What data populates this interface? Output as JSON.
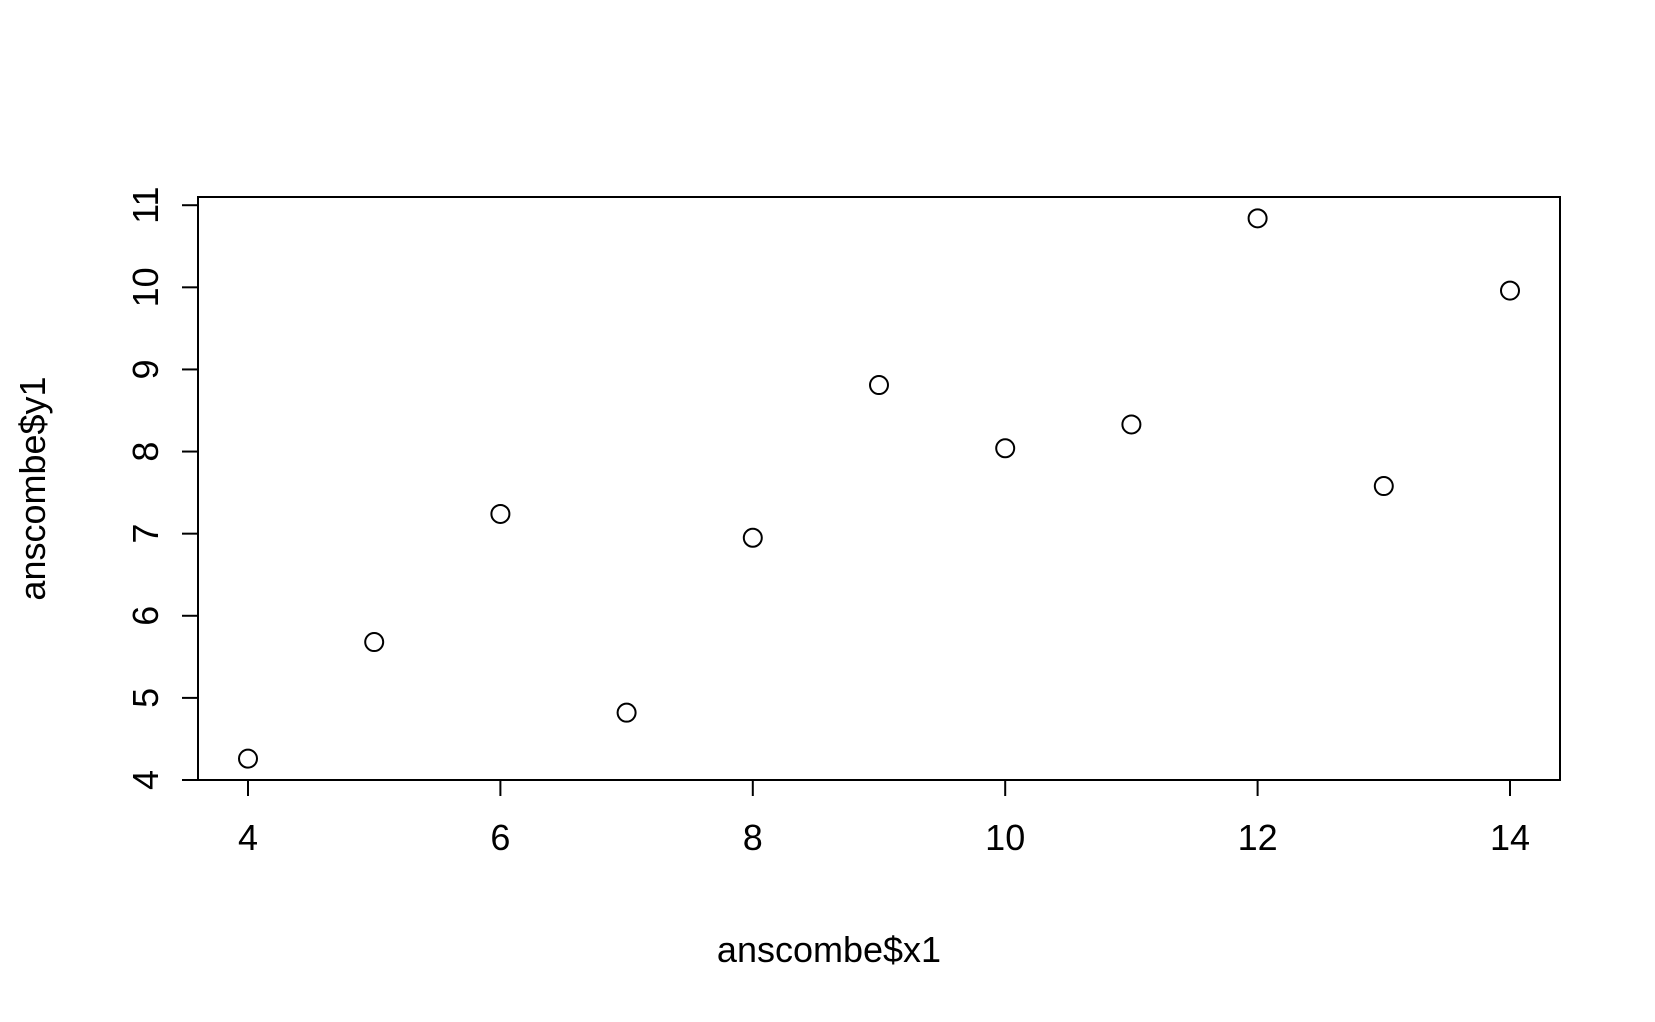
{
  "chart_data": {
    "type": "scatter",
    "xlabel": "anscombe$x1",
    "ylabel": "anscombe$y1",
    "xlim": [
      3.6,
      14.4
    ],
    "ylim": [
      4,
      11.1
    ],
    "x_ticks": [
      4,
      6,
      8,
      10,
      12,
      14
    ],
    "y_ticks": [
      4,
      5,
      6,
      7,
      8,
      9,
      10,
      11
    ],
    "grid": false,
    "marker": "open-circle",
    "series": [
      {
        "x": [
          10,
          8,
          13,
          9,
          11,
          14,
          6,
          4,
          12,
          7,
          5
        ],
        "y": [
          8.04,
          6.95,
          7.58,
          8.81,
          8.33,
          9.96,
          7.24,
          4.26,
          10.84,
          4.82,
          5.68
        ]
      }
    ]
  }
}
